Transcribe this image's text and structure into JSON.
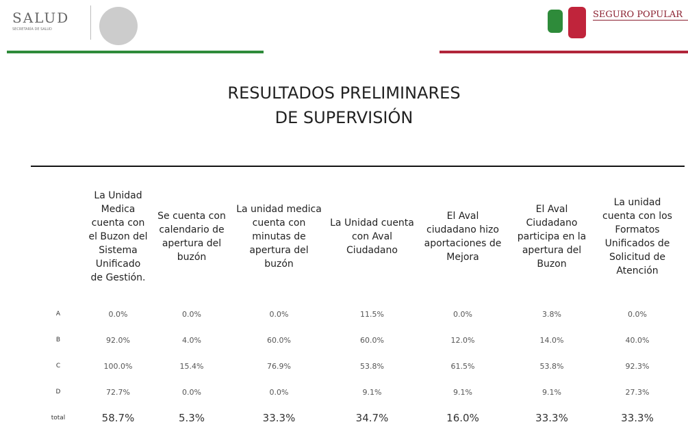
{
  "header": {
    "left_logo": {
      "title": "SALUD",
      "subtitle": "SECRETARÍA DE SALUD"
    },
    "right_logo": {
      "title": "SEGURO POPULAR"
    }
  },
  "title_lines": [
    "RESULTADOS PRELIMINARES",
    "DE SUPERVISIÓN"
  ],
  "table": {
    "columns": [
      "La Unidad Medica cuenta con el Buzon del Sistema Unificado de Gestión.",
      "Se cuenta con calendario de apertura del buzón",
      "La unidad medica cuenta con minutas de apertura del buzón",
      "La Unidad cuenta con Aval Ciudadano",
      "El Aval ciudadano hizo aportaciones de Mejora",
      "El Aval Ciudadano participa en la apertura del Buzon",
      "La unidad cuenta con los Formatos Unificados de Solicitud de Atención"
    ],
    "rows": [
      {
        "label": "A",
        "cells": [
          "0.0%",
          "0.0%",
          "0.0%",
          "11.5%",
          "0.0%",
          "3.8%",
          "0.0%"
        ]
      },
      {
        "label": "B",
        "cells": [
          "92.0%",
          "4.0%",
          "60.0%",
          "60.0%",
          "12.0%",
          "14.0%",
          "40.0%"
        ]
      },
      {
        "label": "C",
        "cells": [
          "100.0%",
          "15.4%",
          "76.9%",
          "53.8%",
          "61.5%",
          "53.8%",
          "92.3%"
        ]
      },
      {
        "label": "D",
        "cells": [
          "72.7%",
          "0.0%",
          "0.0%",
          "9.1%",
          "9.1%",
          "9.1%",
          "27.3%"
        ]
      },
      {
        "label": "total",
        "cells": [
          "58.7%",
          "5.3%",
          "33.3%",
          "34.7%",
          "16.0%",
          "33.3%",
          "33.3%"
        ]
      }
    ]
  }
}
